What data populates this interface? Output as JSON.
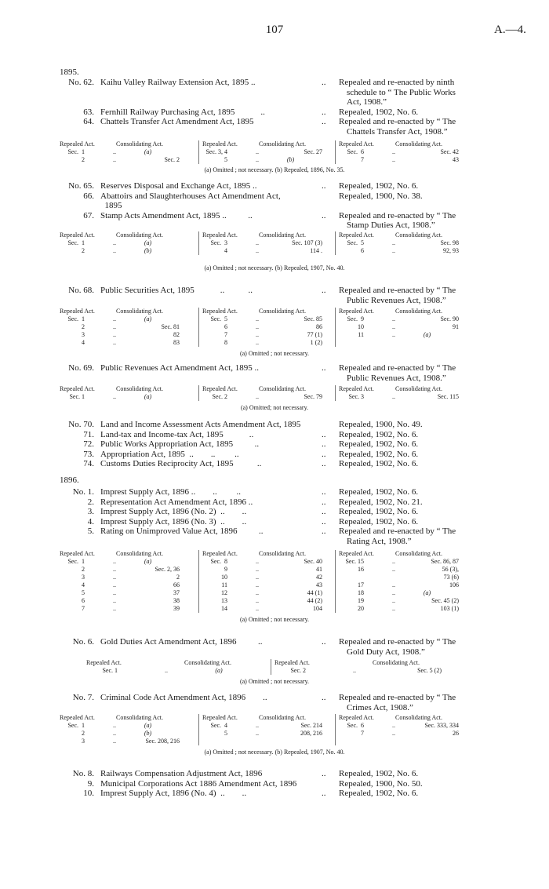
{
  "header": {
    "page_number": "107",
    "reference": "A.—4."
  },
  "blocks": [
    {
      "type": "year",
      "text": "1895."
    },
    {
      "type": "entries",
      "items": [
        {
          "no": "No. 62.",
          "title": [
            "Kaihu Valley Railway Extension Act, 1895 .."
          ],
          "dots": "..",
          "result": [
            "Repealed and re-enacted by ninth",
            "schedule to “ The Public Works",
            "Act, 1908.”"
          ]
        },
        {
          "no": "63.",
          "title": [
            "Fernhill Railway Purchasing Act, 1895            .."
          ],
          "dots": "..",
          "result": [
            "Repealed, 1902, No. 6."
          ]
        },
        {
          "no": "64.",
          "title": [
            "Chattels Transfer Act Amendment Act, 1895"
          ],
          "dots": "..",
          "result": [
            "Repealed and re-enacted by “ The",
            "Chattels Transfer Act, 1908.”"
          ]
        }
      ]
    },
    {
      "type": "table",
      "headers": [
        "Repealed Act.",
        "Consolidating Act."
      ],
      "groups": [
        [
          [
            "Sec.  1",
            "(a)"
          ],
          [
            "2",
            "Sec.  2"
          ]
        ],
        [
          [
            "Sec. 3, 4",
            "Sec. 27"
          ],
          [
            "5",
            "(b)"
          ]
        ],
        [
          [
            "Sec.  6",
            "Sec. 42"
          ],
          [
            "7",
            "43"
          ]
        ]
      ]
    },
    {
      "type": "note",
      "text": "(a) Omitted ;  not necessary.        (b) Repealed, 1896, No. 35."
    },
    {
      "type": "entries",
      "items": [
        {
          "no": "No. 65.",
          "title": [
            "Reserves Disposal and Exchange Act, 1895 .."
          ],
          "dots": "..",
          "result": [
            "Repealed, 1902, No. 6."
          ]
        },
        {
          "no": "66.",
          "title": [
            "Abattoirs and Slaughterhouses Act Amendment Act,",
            "  1895"
          ],
          "dots": "",
          "result": [
            "Repealed, 1900, No. 38."
          ]
        },
        {
          "no": "67.",
          "title": [
            "Stamp Acts Amendment Act, 1895 ..          .."
          ],
          "dots": "..",
          "result": [
            "Repealed and re-enacted by “ The",
            "Stamp Duties Act, 1908.”"
          ]
        }
      ]
    },
    {
      "type": "table",
      "headers": [
        "Repealed Act.",
        "Consolidating Act."
      ],
      "groups": [
        [
          [
            "Sec.  1",
            "(a)"
          ],
          [
            "2",
            "(b)"
          ]
        ],
        [
          [
            "Sec.  3",
            "Sec. 107 (3)"
          ],
          [
            "4",
            "114 ."
          ]
        ],
        [
          [
            "Sec.  5",
            "Sec. 98"
          ],
          [
            "6",
            "92, 93"
          ]
        ]
      ]
    },
    {
      "type": "note",
      "text": "(a) Omitted ;  not necessary.        (b) Repealed, 1907, No. 40."
    },
    {
      "type": "entries",
      "items": [
        {
          "no": "No. 68.",
          "title": [
            "Public Securities Act, 1895            ..           .."
          ],
          "dots": "..",
          "result": [
            "Repealed and re-enacted by “ The",
            "Public Revenues Act, 1908.”"
          ]
        }
      ]
    },
    {
      "type": "table",
      "headers": [
        "Repealed Act.",
        "Consolidating Act."
      ],
      "groups": [
        [
          [
            "Sec.  1",
            "(a)"
          ],
          [
            "2",
            "Sec. 81"
          ],
          [
            "3",
            "82"
          ],
          [
            "4",
            "83"
          ]
        ],
        [
          [
            "Sec.  5",
            "Sec. 85"
          ],
          [
            "6",
            "86"
          ],
          [
            "7",
            "77 (1)"
          ],
          [
            "8",
            "1 (2)"
          ]
        ],
        [
          [
            "Sec.  9",
            "Sec. 90"
          ],
          [
            "10",
            "91"
          ],
          [
            "11",
            "(a)"
          ]
        ]
      ]
    },
    {
      "type": "note",
      "text": "(a) Omitted ;  not necessary."
    },
    {
      "type": "entries",
      "items": [
        {
          "no": "No. 69.",
          "title": [
            "Public Revenues Act Amendment Act, 1895 .."
          ],
          "dots": "..",
          "result": [
            "Repealed and re-enacted by “ The",
            "Public Revenues Act, 1908.”"
          ]
        }
      ]
    },
    {
      "type": "table",
      "headers": [
        "Repealed Act.",
        "Consolidating Act."
      ],
      "groups": [
        [
          [
            "Sec. 1",
            "(a)"
          ]
        ],
        [
          [
            "Sec. 2",
            "Sec. 79"
          ]
        ],
        [
          [
            "Sec. 3",
            "Sec. 115"
          ]
        ]
      ]
    },
    {
      "type": "note",
      "text": "(a) Omitted;  not necessary."
    },
    {
      "type": "entries",
      "items": [
        {
          "no": "No. 70.",
          "title": [
            "Land and Income Assessment Acts Amendment Act, 1895"
          ],
          "dots": "",
          "result": [
            "Repealed, 1900, No. 49."
          ]
        },
        {
          "no": "71.",
          "title": [
            "Land-tax and Income-tax Act, 1895            .."
          ],
          "dots": "..",
          "result": [
            "Repealed, 1902, No. 6."
          ]
        },
        {
          "no": "72.",
          "title": [
            "Public Works Appropriation Act, 1895          .."
          ],
          "dots": "..",
          "result": [
            "Repealed, 1902, No. 6."
          ]
        },
        {
          "no": "73.",
          "title": [
            "Appropriation Act, 1895  ..        ..         .."
          ],
          "dots": "..",
          "result": [
            "Repealed, 1902, No. 6."
          ]
        },
        {
          "no": "74.",
          "title": [
            "Customs Duties Reciprocity Act, 1895           .."
          ],
          "dots": "..",
          "result": [
            "Repealed, 1902, No. 6."
          ]
        }
      ]
    },
    {
      "type": "year",
      "text": "1896."
    },
    {
      "type": "entries",
      "items": [
        {
          "no": "No.   1.",
          "title": [
            "Imprest Supply Act, 1896 ..        ..         .."
          ],
          "dots": "..",
          "result": [
            "Repealed, 1902, No. 6."
          ]
        },
        {
          "no": "2.",
          "title": [
            "Representation Act Amendment Act, 1896 .."
          ],
          "dots": "..",
          "result": [
            "Repealed, 1902, No. 21."
          ]
        },
        {
          "no": "3.",
          "title": [
            "Imprest Supply Act, 1896 (No. 2)  ..        .."
          ],
          "dots": "..",
          "result": [
            "Repealed, 1902, No. 6."
          ]
        },
        {
          "no": "4.",
          "title": [
            "Imprest Supply Act, 1896 (No. 3)  ..        .."
          ],
          "dots": "..",
          "result": [
            "Repealed, 1902, No. 6."
          ]
        },
        {
          "no": "5.",
          "title": [
            "Rating on Unimproved Value Act, 1896          .."
          ],
          "dots": "..",
          "result": [
            "Repealed and re-enacted by “ The",
            "Rating Act, 1908.”"
          ]
        }
      ]
    },
    {
      "type": "table",
      "headers": [
        "Repealed Act.",
        "Consolidating Act."
      ],
      "groups": [
        [
          [
            "Sec.  1",
            "(a)"
          ],
          [
            "2",
            "Sec.  2, 36"
          ],
          [
            "3",
            "2"
          ],
          [
            "4",
            "66"
          ],
          [
            "5",
            "37"
          ],
          [
            "6",
            "38"
          ],
          [
            "7",
            "39"
          ]
        ],
        [
          [
            "Sec.  8",
            "Sec. 40"
          ],
          [
            "9",
            "41"
          ],
          [
            "10",
            "42"
          ],
          [
            "11",
            "43"
          ],
          [
            "12",
            "44 (1)"
          ],
          [
            "13",
            "44 (2)"
          ],
          [
            "14",
            "104"
          ]
        ],
        [
          [
            "Sec. 15",
            "Sec. 86, 87"
          ],
          [
            "16",
            "56 (3),"
          ],
          [
            "",
            "73 (6)"
          ],
          [
            "17",
            "106"
          ],
          [
            "18",
            "(a)"
          ],
          [
            "19",
            "Sec. 45 (2)"
          ],
          [
            "20",
            "103 (1)"
          ]
        ]
      ]
    },
    {
      "type": "note",
      "text": "(a) Omitted ;  not necessary."
    },
    {
      "type": "entries",
      "items": [
        {
          "no": "No.   6.",
          "title": [
            "Gold Duties Act Amendment Act, 1896          .."
          ],
          "dots": "..",
          "result": [
            "Repealed and re-enacted by “ The",
            "Gold Duty Act, 1908.”"
          ]
        }
      ]
    },
    {
      "type": "table",
      "headers": [
        "Repealed Act.",
        "Consolidating Act."
      ],
      "groups": [
        [
          [
            "Sec. 1",
            "(a)"
          ]
        ],
        [
          [
            "Sec. 2",
            "Sec. 5 (2)"
          ]
        ]
      ]
    },
    {
      "type": "note",
      "text": "(a) Omitted ;  not necessary."
    },
    {
      "type": "entries",
      "items": [
        {
          "no": "No.   7.",
          "title": [
            "Criminal Code Act Amendment Act, 1896        .."
          ],
          "dots": "..",
          "result": [
            "Repealed and re-enacted by “ The",
            "Crimes Act, 1908.”"
          ]
        }
      ]
    },
    {
      "type": "table",
      "headers": [
        "Repealed Act.",
        "Consolidating Act."
      ],
      "groups": [
        [
          [
            "Sec.  1",
            "(a)"
          ],
          [
            "2",
            "(b)"
          ],
          [
            "3",
            "Sec. 208, 216"
          ]
        ],
        [
          [
            "Sec.  4",
            "Sec. 214"
          ],
          [
            "5",
            "208, 216"
          ]
        ],
        [
          [
            "Sec.  6",
            "Sec. 333, 334"
          ],
          [
            "7",
            "26"
          ]
        ]
      ]
    },
    {
      "type": "note",
      "text": "(a) Omitted ;  not necessary.        (b) Repealed, 1907, No. 40."
    },
    {
      "type": "entries",
      "items": [
        {
          "no": "No.   8.",
          "title": [
            "Railways Compensation Adjustment Act, 1896"
          ],
          "dots": "..",
          "result": [
            "Repealed, 1902, No. 6."
          ]
        },
        {
          "no": "9.",
          "title": [
            "Municipal Corporations Act 1886 Amendment Act, 1896"
          ],
          "dots": "",
          "result": [
            "Repealed, 1900, No. 50."
          ]
        },
        {
          "no": "10.",
          "title": [
            "Imprest Supply Act, 1896 (No. 4)  ..        .."
          ],
          "dots": "..",
          "result": [
            "Repealed, 1902, No. 6."
          ]
        }
      ]
    }
  ]
}
